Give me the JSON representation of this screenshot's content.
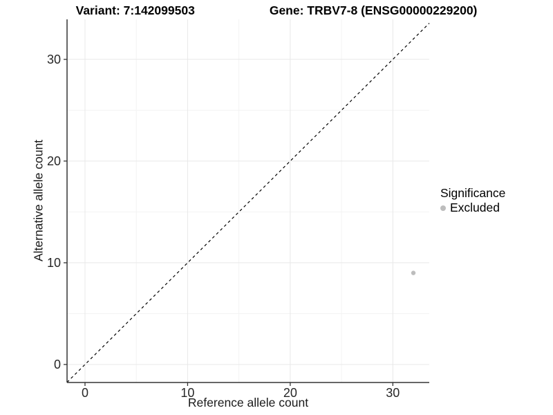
{
  "title": {
    "left": "Variant: 7:142099503",
    "right": "Gene: TRBV7-8 (ENSG00000229200)"
  },
  "axes": {
    "x_label": "Reference allele count",
    "y_label": "Alternative allele count"
  },
  "legend": {
    "title": "Significance",
    "position": "right",
    "entries": [
      {
        "label": "Excluded",
        "color": "#bdbdbd"
      }
    ]
  },
  "chart_data": {
    "type": "scatter",
    "title": "Variant: 7:142099503   Gene: TRBV7-8 (ENSG00000229200)",
    "xlabel": "Reference allele count",
    "ylabel": "Alternative allele count",
    "xlim": [
      -1.75,
      33.55
    ],
    "ylim": [
      -1.77,
      33.93
    ],
    "x_ticks": [
      0,
      10,
      20,
      30
    ],
    "y_ticks": [
      0,
      10,
      20,
      30
    ],
    "x_minor_ticks": [
      5,
      15,
      25
    ],
    "y_minor_ticks": [
      5,
      15,
      25
    ],
    "grid": true,
    "legend_position": "right",
    "series": [
      {
        "name": "Excluded",
        "color": "#bdbdbd",
        "point_radius": 3.2,
        "points": [
          {
            "x": 32,
            "y": 9
          }
        ]
      }
    ],
    "reference_line": {
      "type": "identity y = x",
      "style": "dashed",
      "color": "#000000"
    },
    "colors": {
      "panel_background": "#ffffff",
      "grid_major": "#e8e8e8",
      "grid_minor": "#f3f3f3",
      "axis_line": "#333333",
      "tick_mark": "#333333",
      "tick_label": "#262626"
    }
  }
}
